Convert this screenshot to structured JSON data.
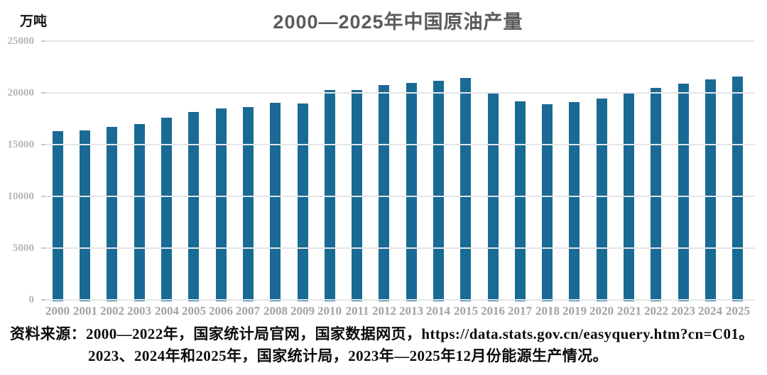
{
  "chart_data": {
    "type": "bar",
    "title": "2000—2025年中国原油产量",
    "unit_label": "万吨",
    "categories": [
      "2000",
      "2001",
      "2002",
      "2003",
      "2004",
      "2005",
      "2006",
      "2007",
      "2008",
      "2009",
      "2010",
      "2011",
      "2012",
      "2013",
      "2014",
      "2015",
      "2016",
      "2017",
      "2018",
      "2019",
      "2020",
      "2021",
      "2022",
      "2023",
      "2024",
      "2025"
    ],
    "values": [
      16300,
      16396,
      16700,
      16960,
      17587,
      18135,
      18477,
      18632,
      19043,
      18949,
      20301,
      20288,
      20748,
      20928,
      21143,
      21456,
      19969,
      19151,
      18911,
      19101,
      19477,
      19898,
      20467,
      20891,
      21284,
      21600
    ],
    "ylim": [
      0,
      25000
    ],
    "yticks": [
      0,
      5000,
      10000,
      15000,
      20000,
      25000
    ],
    "grid": true,
    "legend": "none",
    "bar_color": "#196a94",
    "gridline_color": "#e4e5e7",
    "title_color": "#595b5e",
    "tick_label_color": "#a0a3a6"
  },
  "source": {
    "line1": "资料来源：2000—2022年，国家统计局官网，国家数据网页，https://data.stats.gov.cn/easyquery.htm?cn=C01。",
    "line2": "2023、2024年和2025年，国家统计局，2023年—2025年12月份能源生产情况。"
  }
}
